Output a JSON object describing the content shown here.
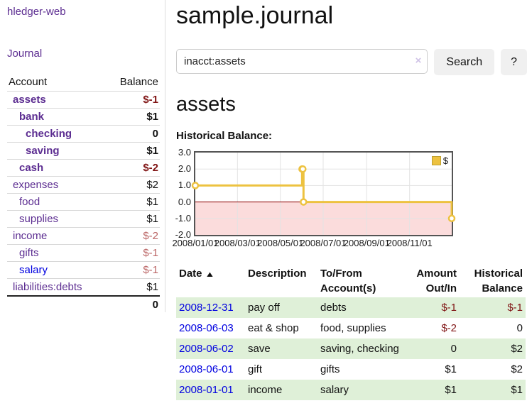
{
  "app": {
    "title": "hledger-web",
    "nav_journal": "Journal"
  },
  "colors": {
    "link_purple": "#5c2d91",
    "link_blue": "#0000e0",
    "negative_strong": "#801515",
    "negative_soft": "#bb6666",
    "stripe_green": "#dff0d8",
    "series_gold": "#edc240",
    "zero_line": "#8b0000",
    "negative_region": "#fbdcdc"
  },
  "sidebar": {
    "headers": {
      "account": "Account",
      "balance": "Balance"
    },
    "accounts": [
      {
        "name": "assets",
        "indent": 0,
        "bold": true,
        "link_style": "visited",
        "balance": "$-1",
        "balance_style": "neg-strong"
      },
      {
        "name": "bank",
        "indent": 1,
        "bold": true,
        "link_style": "visited",
        "balance": "$1",
        "balance_style": ""
      },
      {
        "name": "checking",
        "indent": 2,
        "bold": true,
        "link_style": "visited",
        "balance": "0",
        "balance_style": ""
      },
      {
        "name": "saving",
        "indent": 2,
        "bold": true,
        "link_style": "visited",
        "balance": "$1",
        "balance_style": ""
      },
      {
        "name": "cash",
        "indent": 1,
        "bold": true,
        "link_style": "visited",
        "balance": "$-2",
        "balance_style": "neg-strong"
      },
      {
        "name": "expenses",
        "indent": 0,
        "bold": false,
        "link_style": "visited",
        "balance": "$2",
        "balance_style": ""
      },
      {
        "name": "food",
        "indent": 1,
        "bold": false,
        "link_style": "visited",
        "balance": "$1",
        "balance_style": ""
      },
      {
        "name": "supplies",
        "indent": 1,
        "bold": false,
        "link_style": "visited",
        "balance": "$1",
        "balance_style": ""
      },
      {
        "name": "income",
        "indent": 0,
        "bold": false,
        "link_style": "visited",
        "balance": "$-2",
        "balance_style": "neg-soft"
      },
      {
        "name": "gifts",
        "indent": 1,
        "bold": false,
        "link_style": "visited",
        "balance": "$-1",
        "balance_style": "neg-soft"
      },
      {
        "name": "salary",
        "indent": 1,
        "bold": false,
        "link_style": "unvisited",
        "balance": "$-1",
        "balance_style": "neg-soft"
      },
      {
        "name": "liabilities:debts",
        "indent": 0,
        "bold": false,
        "link_style": "visited",
        "balance": "$1",
        "balance_style": ""
      }
    ],
    "total": "0"
  },
  "main": {
    "title": "sample.journal",
    "search": {
      "value": "inacct:assets",
      "clear_icon": "×",
      "button": "Search",
      "help": "?"
    },
    "account_heading": "assets"
  },
  "chart_data": {
    "type": "line",
    "step": true,
    "title": "Historical Balance:",
    "series": [
      {
        "name": "$",
        "color": "#edc240",
        "points": [
          {
            "date": "2008-01-01",
            "day": 0,
            "value": 1
          },
          {
            "date": "2008-06-01",
            "day": 152,
            "value": 2
          },
          {
            "date": "2008-06-02",
            "day": 153,
            "value": 2
          },
          {
            "date": "2008-06-03",
            "day": 154,
            "value": 0
          },
          {
            "date": "2008-12-31",
            "day": 365,
            "value": -1
          }
        ]
      }
    ],
    "x_range": [
      "2008-01-01",
      "2008-12-31"
    ],
    "x_span_days": 365,
    "xticks": [
      {
        "day": 0,
        "label": "2008/01/01"
      },
      {
        "day": 60,
        "label": "2008/03/01"
      },
      {
        "day": 121,
        "label": "2008/05/01"
      },
      {
        "day": 182,
        "label": "2008/07/01"
      },
      {
        "day": 244,
        "label": "2008/09/01"
      },
      {
        "day": 305,
        "label": "2008/11/01"
      }
    ],
    "yticks": [
      {
        "value": 3,
        "label": "3.0"
      },
      {
        "value": 2,
        "label": "2.0"
      },
      {
        "value": 1,
        "label": "1.0"
      },
      {
        "value": 0,
        "label": "0.0"
      },
      {
        "value": -1,
        "label": "-1.0"
      },
      {
        "value": -2,
        "label": "-2.0"
      }
    ],
    "ylim": [
      -2,
      3
    ],
    "grid": true,
    "zero_line_color": "#8b0000",
    "negative_fill": "#fbdcdc",
    "legend": {
      "label": "$",
      "position": "top-right"
    }
  },
  "register": {
    "headers": [
      {
        "line1": "Date",
        "line2": "",
        "sort": "asc",
        "align": "left"
      },
      {
        "line1": "Description",
        "line2": "",
        "align": "left"
      },
      {
        "line1": "To/From",
        "line2": "Account(s)",
        "align": "left"
      },
      {
        "line1": "Amount",
        "line2": "Out/In",
        "align": "right"
      },
      {
        "line1": "Historical",
        "line2": "Balance",
        "align": "right"
      }
    ],
    "rows": [
      {
        "date": "2008-12-31",
        "description": "pay off",
        "accounts": "debts",
        "amount": "$-1",
        "amount_style": "neg-strong",
        "balance": "$-1",
        "balance_style": "neg-strong"
      },
      {
        "date": "2008-06-03",
        "description": "eat & shop",
        "accounts": "food, supplies",
        "amount": "$-2",
        "amount_style": "neg-strong",
        "balance": "0",
        "balance_style": ""
      },
      {
        "date": "2008-06-02",
        "description": "save",
        "accounts": "saving, checking",
        "amount": "0",
        "amount_style": "",
        "balance": "$2",
        "balance_style": ""
      },
      {
        "date": "2008-06-01",
        "description": "gift",
        "accounts": "gifts",
        "amount": "$1",
        "amount_style": "",
        "balance": "$2",
        "balance_style": ""
      },
      {
        "date": "2008-01-01",
        "description": "income",
        "accounts": "salary",
        "amount": "$1",
        "amount_style": "",
        "balance": "$1",
        "balance_style": ""
      }
    ]
  }
}
